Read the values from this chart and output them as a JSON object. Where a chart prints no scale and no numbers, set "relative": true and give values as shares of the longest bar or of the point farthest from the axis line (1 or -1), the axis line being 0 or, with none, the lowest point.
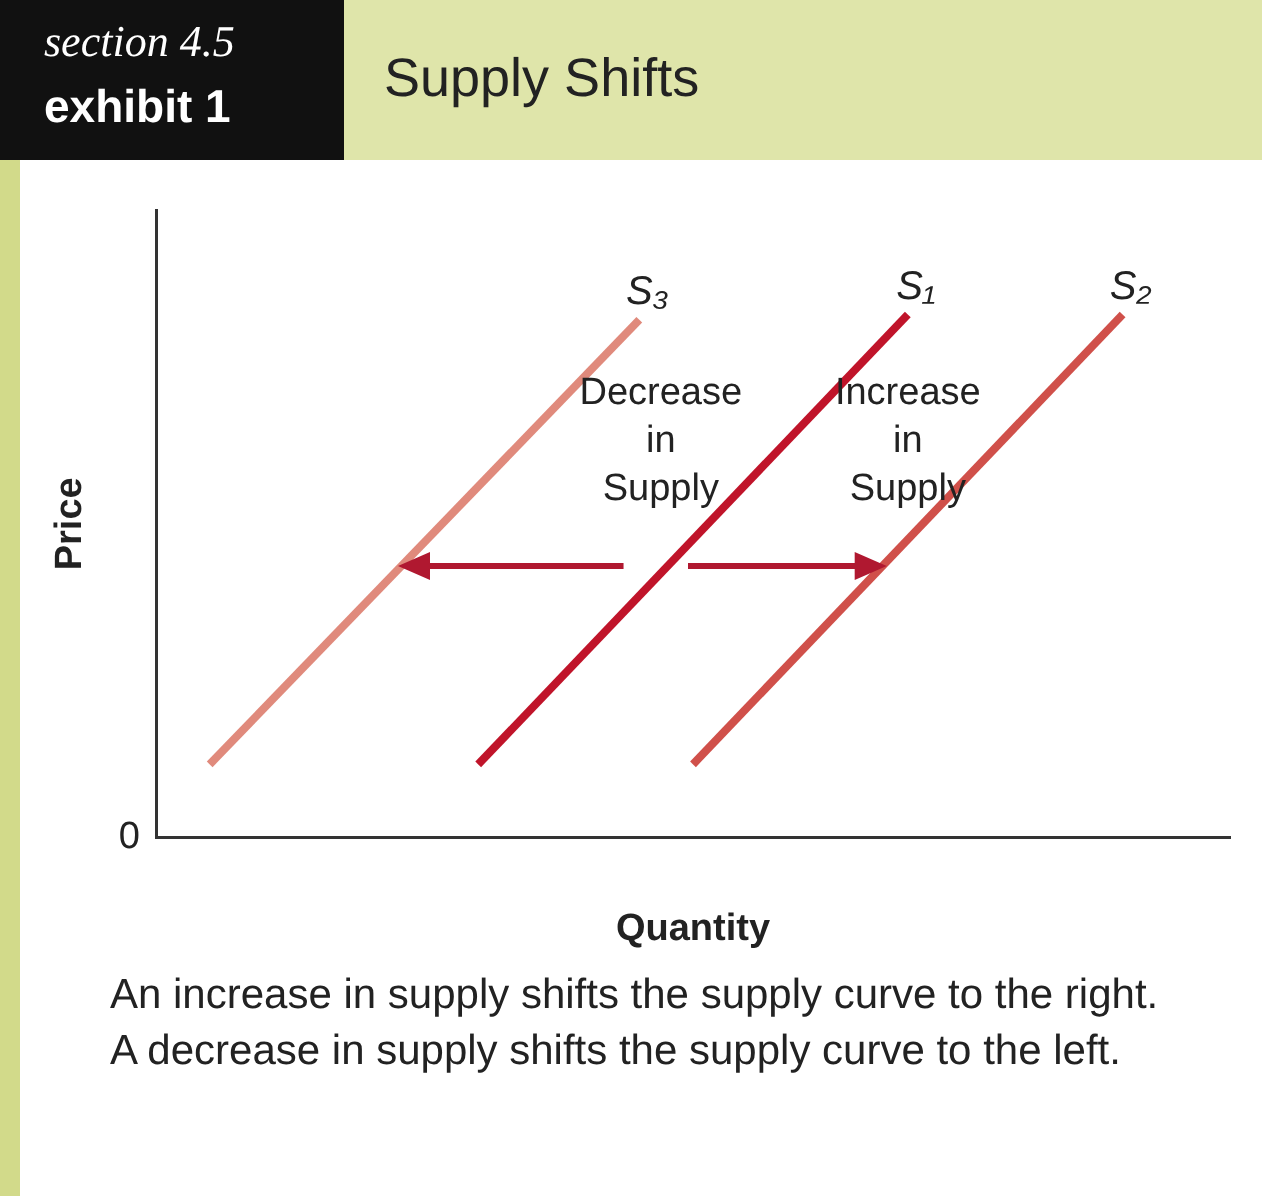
{
  "chart_data": {
    "type": "line",
    "title": "Supply Shifts",
    "xlabel": "Quantity",
    "ylabel": "Price",
    "relative": true,
    "annotations": [
      "section 4.5",
      "exhibit 1",
      "Decrease in Supply",
      "Increase in Supply",
      "0",
      "An increase in supply shifts the supply curve to the right. A decrease in supply shifts the supply curve to the left."
    ],
    "categories": [
      null,
      null,
      null,
      null,
      null,
      null,
      null,
      null,
      null,
      null,
      null,
      null,
      null,
      null,
      null,
      null,
      null,
      null,
      null,
      null,
      null
    ],
    "series": [
      {
        "name": "S₃",
        "color": "#e08a7c",
        "values": [
          null,
          0.14,
          null,
          null,
          null,
          null,
          null,
          null,
          null,
          0.99,
          null,
          null,
          null,
          null,
          null,
          null,
          null,
          null,
          null,
          null,
          null
        ]
      },
      {
        "name": "S₁",
        "color": "#c0142a",
        "values": [
          null,
          null,
          null,
          null,
          null,
          null,
          0.14,
          null,
          null,
          null,
          null,
          null,
          null,
          null,
          1,
          null,
          null,
          null,
          null,
          null,
          null
        ]
      },
      {
        "name": "S₂",
        "color": "#d0504a",
        "values": [
          null,
          null,
          null,
          null,
          null,
          null,
          null,
          null,
          null,
          null,
          0.14,
          null,
          null,
          null,
          null,
          null,
          null,
          null,
          1,
          null,
          null
        ]
      }
    ]
  }
}
